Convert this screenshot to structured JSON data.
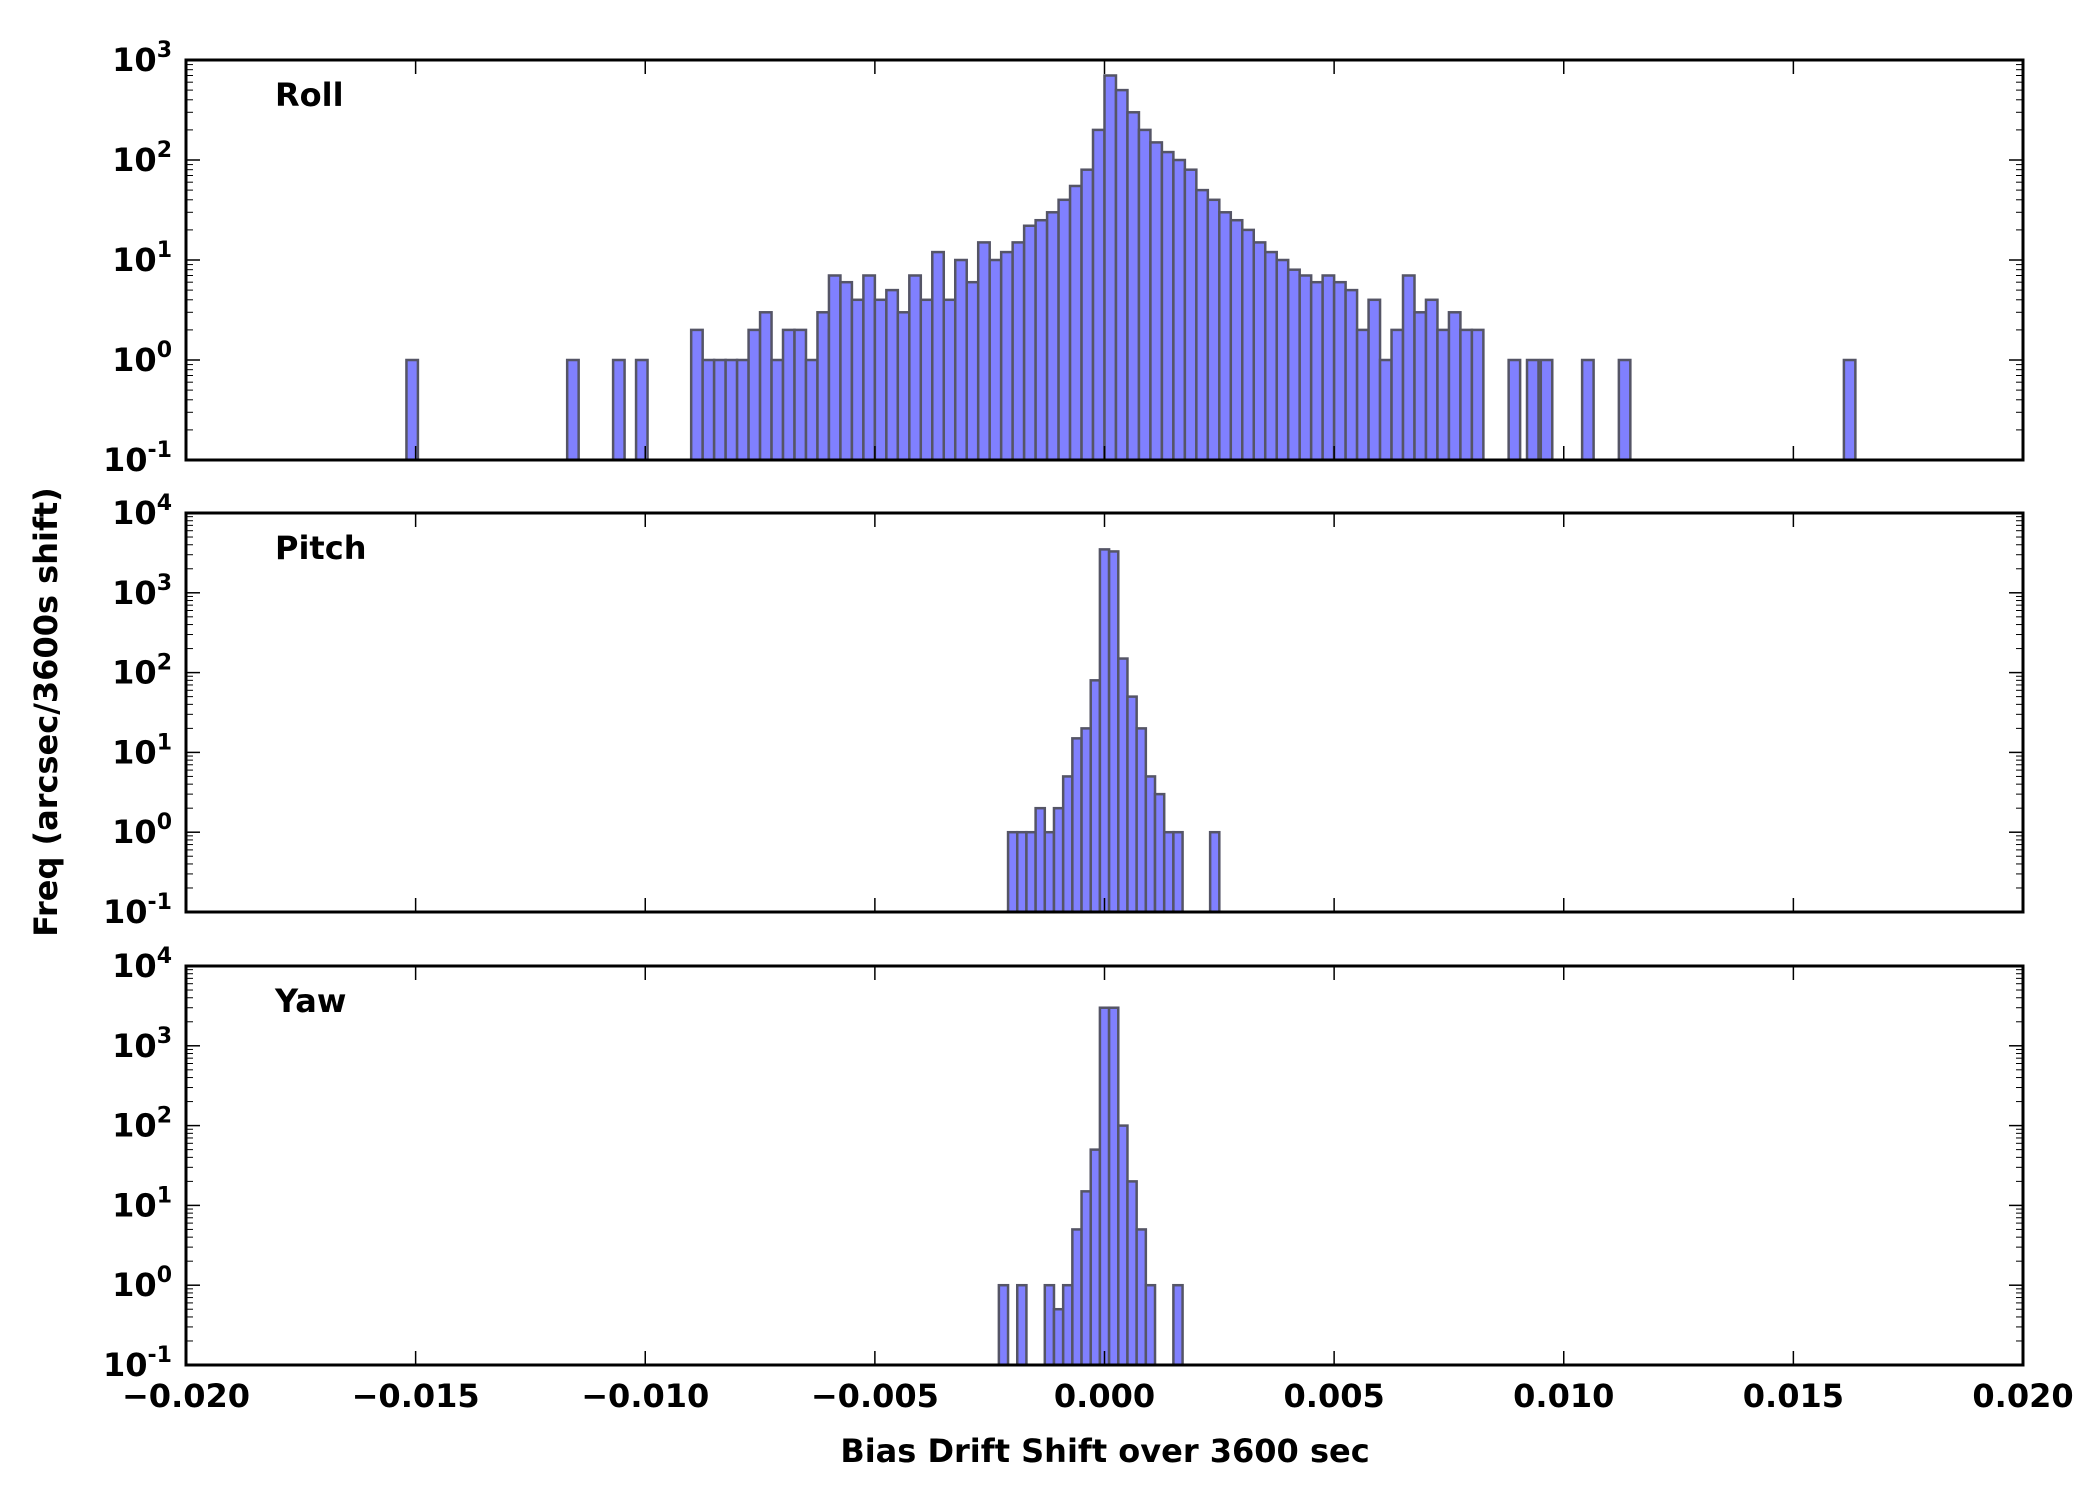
{
  "chart_data": {
    "type": "histogram",
    "shared_x": {
      "label": "Bias Drift Shift over 3600 sec",
      "xlim": [
        -0.02,
        0.02
      ],
      "ticks": [
        -0.02,
        -0.015,
        -0.01,
        -0.005,
        0.0,
        0.005,
        0.01,
        0.015,
        0.02
      ],
      "tick_labels": [
        "−0.020",
        "−0.015",
        "−0.010",
        "−0.005",
        "0.000",
        "0.005",
        "0.010",
        "0.015",
        "0.020"
      ]
    },
    "shared_y_label": "Freq (arcsec/3600s shift)",
    "colors": {
      "fill": "#8080ff",
      "edge": "#555566"
    },
    "panels": [
      {
        "name": "Roll",
        "yscale": "log",
        "ylim_exp": [
          -1,
          3
        ],
        "y_tick_exponents": [
          -1,
          0,
          1,
          2,
          3
        ],
        "bin_width": 0.00025,
        "bars": [
          [
            -0.0152,
            1
          ],
          [
            -0.0117,
            1
          ],
          [
            -0.0107,
            1
          ],
          [
            -0.0102,
            1
          ],
          [
            -0.009,
            2
          ],
          [
            -0.00875,
            1
          ],
          [
            -0.0085,
            1
          ],
          [
            -0.00825,
            1
          ],
          [
            -0.008,
            1
          ],
          [
            -0.00775,
            2
          ],
          [
            -0.0075,
            3
          ],
          [
            -0.00725,
            1
          ],
          [
            -0.007,
            2
          ],
          [
            -0.00675,
            2
          ],
          [
            -0.0065,
            1
          ],
          [
            -0.00625,
            3
          ],
          [
            -0.006,
            2
          ],
          [
            -0.00575,
            2
          ],
          [
            -0.0055,
            1
          ],
          [
            -0.006,
            7
          ],
          [
            -0.00575,
            6
          ],
          [
            -0.0055,
            4
          ],
          [
            -0.00525,
            7
          ],
          [
            -0.005,
            4
          ],
          [
            -0.00475,
            5
          ],
          [
            -0.0045,
            3
          ],
          [
            -0.00425,
            7
          ],
          [
            -0.004,
            4
          ],
          [
            -0.00375,
            12
          ],
          [
            -0.0035,
            4
          ],
          [
            -0.00325,
            10
          ],
          [
            -0.003,
            6
          ],
          [
            -0.00275,
            15
          ],
          [
            -0.0025,
            10
          ],
          [
            -0.00225,
            12
          ],
          [
            -0.002,
            15
          ],
          [
            -0.00175,
            22
          ],
          [
            -0.0015,
            25
          ],
          [
            -0.00125,
            30
          ],
          [
            -0.001,
            40
          ],
          [
            -0.00075,
            55
          ],
          [
            -0.0005,
            80
          ],
          [
            -0.00025,
            200
          ],
          [
            0.0,
            700
          ],
          [
            0.00025,
            500
          ],
          [
            0.0005,
            300
          ],
          [
            0.00075,
            200
          ],
          [
            0.001,
            150
          ],
          [
            0.00125,
            120
          ],
          [
            0.0015,
            100
          ],
          [
            0.00175,
            80
          ],
          [
            0.002,
            50
          ],
          [
            0.00225,
            40
          ],
          [
            0.0025,
            30
          ],
          [
            0.00275,
            25
          ],
          [
            0.003,
            20
          ],
          [
            0.00325,
            15
          ],
          [
            0.0035,
            12
          ],
          [
            0.00375,
            10
          ],
          [
            0.004,
            8
          ],
          [
            0.00425,
            7
          ],
          [
            0.0045,
            6
          ],
          [
            0.00475,
            7
          ],
          [
            0.005,
            6
          ],
          [
            0.00525,
            5
          ],
          [
            0.0055,
            2
          ],
          [
            0.00575,
            4
          ],
          [
            0.006,
            1
          ],
          [
            0.00625,
            2
          ],
          [
            0.0065,
            7
          ],
          [
            0.00675,
            3
          ],
          [
            0.007,
            4
          ],
          [
            0.00725,
            2
          ],
          [
            0.0075,
            3
          ],
          [
            0.00775,
            2
          ],
          [
            0.008,
            2
          ],
          [
            0.0088,
            1
          ],
          [
            0.0092,
            1
          ],
          [
            0.0095,
            1
          ],
          [
            0.0104,
            1
          ],
          [
            0.0112,
            1
          ],
          [
            0.0161,
            1
          ]
        ]
      },
      {
        "name": "Pitch",
        "yscale": "log",
        "ylim_exp": [
          -1,
          4
        ],
        "y_tick_exponents": [
          -1,
          0,
          1,
          2,
          3,
          4
        ],
        "bin_width": 0.0002,
        "bars": [
          [
            -0.0021,
            1
          ],
          [
            -0.0019,
            1
          ],
          [
            -0.0017,
            1
          ],
          [
            -0.0015,
            2
          ],
          [
            -0.0013,
            1
          ],
          [
            -0.0011,
            2
          ],
          [
            -0.0009,
            5
          ],
          [
            -0.0007,
            15
          ],
          [
            -0.0005,
            20
          ],
          [
            -0.0003,
            80
          ],
          [
            -0.0001,
            3500
          ],
          [
            0.0001,
            3300
          ],
          [
            0.0003,
            150
          ],
          [
            0.0005,
            50
          ],
          [
            0.0007,
            20
          ],
          [
            0.0009,
            5
          ],
          [
            0.0011,
            3
          ],
          [
            0.0013,
            1
          ],
          [
            0.0015,
            1
          ],
          [
            0.0023,
            1
          ]
        ]
      },
      {
        "name": "Yaw",
        "yscale": "log",
        "ylim_exp": [
          -1,
          4
        ],
        "y_tick_exponents": [
          -1,
          0,
          1,
          2,
          3,
          4
        ],
        "bin_width": 0.0002,
        "bars": [
          [
            -0.0023,
            1
          ],
          [
            -0.0019,
            1
          ],
          [
            -0.0013,
            1
          ],
          [
            -0.0011,
            0.5
          ],
          [
            -0.0009,
            1
          ],
          [
            -0.0007,
            5
          ],
          [
            -0.0005,
            15
          ],
          [
            -0.0003,
            50
          ],
          [
            -0.0001,
            3000
          ],
          [
            0.0001,
            3000
          ],
          [
            0.0003,
            100
          ],
          [
            0.0005,
            20
          ],
          [
            0.0007,
            5
          ],
          [
            0.0009,
            1
          ],
          [
            0.0015,
            1
          ]
        ]
      }
    ]
  }
}
